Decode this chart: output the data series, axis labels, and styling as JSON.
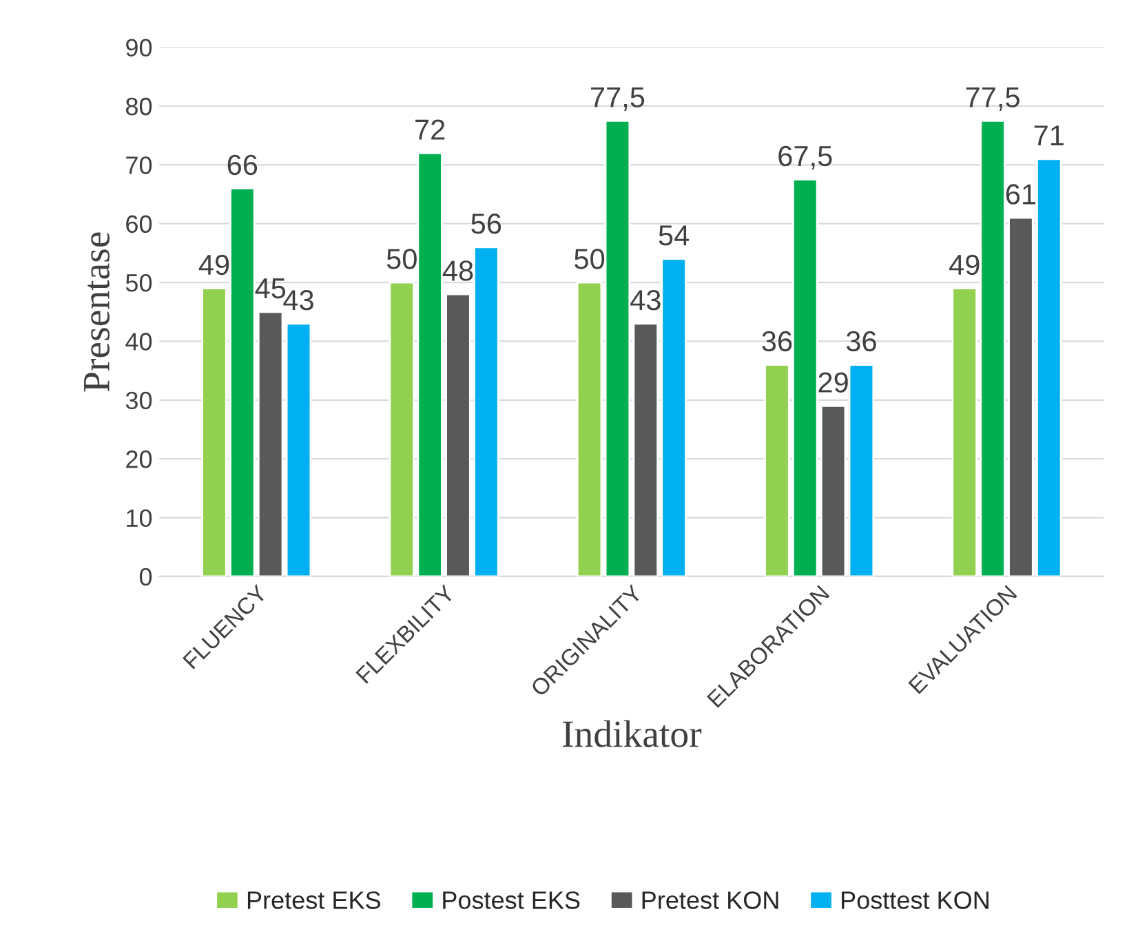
{
  "chart_data": {
    "type": "bar",
    "xlabel": "Indikator",
    "ylabel": "Presentase",
    "categories": [
      "FLUENCY",
      "FLEXBILITY",
      "ORIGINALITY",
      "ELABORATION",
      "EVALUATION"
    ],
    "series": [
      {
        "name": "Pretest EKS",
        "color": "#92d050",
        "values": [
          49,
          50,
          50,
          36,
          49
        ],
        "value_labels": [
          "49",
          "50",
          "50",
          "36",
          "49"
        ]
      },
      {
        "name": "Postest EKS",
        "color": "#00b050",
        "values": [
          66,
          72,
          77.5,
          67.5,
          77.5
        ],
        "value_labels": [
          "66",
          "72",
          "77,5",
          "67,5",
          "77,5"
        ]
      },
      {
        "name": "Pretest KON",
        "color": "#595959",
        "values": [
          45,
          48,
          43,
          29,
          61
        ],
        "value_labels": [
          "45",
          "48",
          "43",
          "29",
          "61"
        ]
      },
      {
        "name": "Posttest KON",
        "color": "#00b0f0",
        "values": [
          43,
          56,
          54,
          36,
          71
        ],
        "value_labels": [
          "43",
          "56",
          "54",
          "36",
          "71"
        ]
      }
    ],
    "ylim": [
      0,
      90
    ],
    "yticks": [
      0,
      10,
      20,
      30,
      40,
      50,
      60,
      70,
      80,
      90
    ],
    "grid": "y",
    "legend": "bottom"
  }
}
